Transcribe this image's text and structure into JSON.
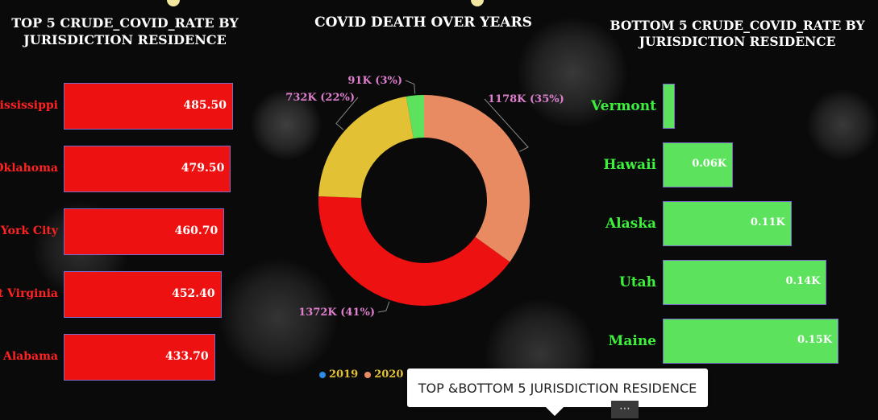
{
  "left_panel": {
    "title_line1": "TOP 5 CRUDE_COVID_RATE BY",
    "title_line2": "JURISDICTION RESIDENCE"
  },
  "middle_panel": {
    "title": "COVID DEATH OVER YEARS",
    "legend": [
      {
        "label": "2019",
        "color": "#2e8ce6"
      },
      {
        "label": "2020",
        "color": "#e98b62"
      }
    ]
  },
  "right_panel": {
    "title_line1": "BOTTOM 5 CRUDE_COVID_RATE BY",
    "title_line2": "JURISDICTION RESIDENCE"
  },
  "tooltip": {
    "text": "TOP &BOTTOM 5 JURISDICTION RESIDENCE"
  },
  "more_button": {
    "label": "⋯"
  },
  "colors": {
    "red_bar": "#ee1111",
    "green_bar": "#5de25d",
    "label_red": "#ff2222",
    "label_green": "#3cf03c"
  },
  "chart_data": [
    {
      "type": "bar",
      "orientation": "horizontal",
      "title": "TOP 5 CRUDE_COVID_RATE BY JURISDICTION RESIDENCE",
      "categories": [
        "Mississippi",
        "Oklahoma",
        "New York City",
        "West Virginia",
        "Alabama"
      ],
      "visible_labels": [
        "lississippi",
        "Oklahoma",
        "York City",
        "t Virginia",
        "Alabama"
      ],
      "values": [
        485.5,
        479.5,
        460.7,
        452.4,
        433.7
      ],
      "value_labels": [
        "485.50",
        "479.50",
        "460.70",
        "452.40",
        "433.70"
      ]
    },
    {
      "type": "pie",
      "donut": true,
      "title": "COVID DEATH OVER YEARS",
      "slices": [
        {
          "value": 1178,
          "label": "1178K (35%)",
          "color": "#e98b62",
          "label_color": "#e07fd0"
        },
        {
          "value": 1372,
          "label": "1372K (41%)",
          "color": "#ee1111",
          "label_color": "#e07fd0"
        },
        {
          "value": 732,
          "label": "732K (22%)",
          "color": "#e3c135",
          "label_color": "#e07fd0"
        },
        {
          "value": 91,
          "label": "91K (3%)",
          "color": "#5de25d",
          "label_color": "#e07fd0"
        }
      ]
    },
    {
      "type": "bar",
      "orientation": "horizontal",
      "title": "BOTTOM 5 CRUDE_COVID_RATE BY JURISDICTION RESIDENCE",
      "categories": [
        "Vermont",
        "Hawaii",
        "Alaska",
        "Utah",
        "Maine"
      ],
      "values": [
        0.01,
        0.06,
        0.11,
        0.14,
        0.15
      ],
      "value_labels": [
        "",
        "0.06K",
        "0.11K",
        "0.14K",
        "0.15K"
      ]
    }
  ]
}
